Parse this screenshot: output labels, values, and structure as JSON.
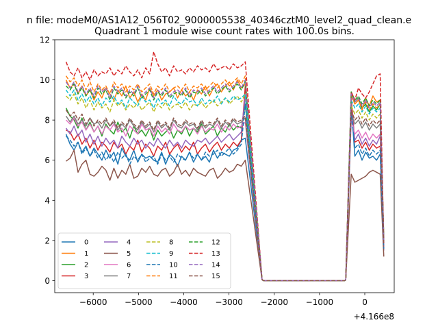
{
  "suptitle": "n file: modeM0/AS1A12_056T02_9000005538_40346cztM0_level2_quad_clean.e",
  "chart_data": {
    "type": "line",
    "title": "Quadrant 1 module wise count rates with 100.0s bins.",
    "xlabel": "",
    "ylabel": "",
    "x_offset_label": "+4.166e8",
    "xlim": [
      -6850,
      650
    ],
    "ylim": [
      -0.6,
      12.0
    ],
    "xticks": [
      -6000,
      -5000,
      -4000,
      -3000,
      -2000,
      -1000,
      0
    ],
    "xtick_labels": [
      "−6000",
      "−5000",
      "−4000",
      "−3000",
      "−2000",
      "−1000",
      "0"
    ],
    "yticks": [
      0,
      2,
      4,
      6,
      8,
      10,
      12
    ],
    "ytick_labels": [
      "0",
      "2",
      "4",
      "6",
      "8",
      "10",
      "12"
    ],
    "grid": false,
    "legend_position": "lower-left",
    "legend_columns": 4,
    "gap_x": [
      -2300,
      -400
    ],
    "series": [
      {
        "name": "0",
        "color": "#1f77b4",
        "dash": false,
        "pre": [
          7.3,
          6.8,
          6.5,
          6.9,
          6.4,
          6.7,
          6.2,
          6.6,
          6.3,
          6.0,
          6.5,
          6.1,
          6.4,
          5.8,
          6.6,
          6.2,
          6.0,
          6.5,
          5.9,
          6.3,
          6.1,
          6.2,
          6.0,
          5.9,
          6.4,
          5.8,
          6.3,
          6.1,
          5.7,
          6.2,
          6.0,
          6.4,
          5.9,
          6.3,
          6.0,
          6.2,
          5.9,
          6.5,
          6.1,
          6.4,
          6.3,
          6.2,
          6.5,
          6.6,
          7.0,
          7.1
        ],
        "post": [
          8.8,
          6.2,
          6.5,
          6.0,
          6.4,
          6.1,
          6.2,
          6.0,
          6.3,
          1.5
        ]
      },
      {
        "name": "1",
        "color": "#ff7f0e",
        "dash": false,
        "pre": [
          10.0,
          9.6,
          9.8,
          9.3,
          9.7,
          9.2,
          9.5,
          9.0,
          9.4,
          9.1,
          9.6,
          9.3,
          9.0,
          9.5,
          9.2,
          9.7,
          9.1,
          9.4,
          8.9,
          9.3,
          9.0,
          9.6,
          9.2,
          9.5,
          9.0,
          9.3,
          9.4,
          9.6,
          9.1,
          9.5,
          9.2,
          9.4,
          9.0,
          9.5,
          9.3,
          9.7,
          9.2,
          9.6,
          9.8,
          9.4,
          9.7,
          9.9,
          9.5,
          10.0,
          9.6,
          9.8
        ],
        "post": [
          9.3,
          8.8,
          9.0,
          8.5,
          9.1,
          8.7,
          9.2,
          8.9,
          9.0,
          2.0
        ]
      },
      {
        "name": "2",
        "color": "#2ca02c",
        "dash": false,
        "pre": [
          8.6,
          8.2,
          8.0,
          7.6,
          8.1,
          7.5,
          7.9,
          7.4,
          7.7,
          7.2,
          7.8,
          7.5,
          7.3,
          7.9,
          7.4,
          7.6,
          7.1,
          7.7,
          7.3,
          7.5,
          7.2,
          7.6,
          7.0,
          7.5,
          7.2,
          7.4,
          7.6,
          7.1,
          7.5,
          7.3,
          7.7,
          7.2,
          7.6,
          7.4,
          7.8,
          7.3,
          7.5,
          7.7,
          7.2,
          7.6,
          7.4,
          7.8,
          7.5,
          7.7,
          7.6,
          8.8
        ],
        "post": [
          9.4,
          8.9,
          9.1,
          8.6,
          8.8,
          8.4,
          8.7,
          8.5,
          8.8,
          1.7
        ]
      },
      {
        "name": "3",
        "color": "#d62728",
        "dash": false,
        "pre": [
          7.5,
          7.4,
          7.0,
          7.3,
          6.8,
          7.1,
          6.6,
          7.0,
          6.5,
          6.9,
          6.7,
          6.4,
          6.9,
          6.6,
          6.8,
          6.3,
          6.7,
          6.5,
          7.0,
          6.4,
          6.8,
          6.6,
          6.2,
          6.7,
          6.5,
          6.9,
          6.3,
          6.6,
          6.8,
          6.4,
          6.7,
          6.5,
          6.9,
          6.3,
          6.6,
          6.8,
          6.4,
          6.7,
          6.9,
          6.5,
          6.8,
          6.6,
          6.9,
          6.7,
          7.0,
          9.7
        ],
        "post": [
          9.1,
          6.9,
          7.0,
          6.6,
          6.9,
          6.5,
          6.8,
          6.6,
          6.7,
          1.6
        ]
      },
      {
        "name": "4",
        "color": "#9467bd",
        "dash": false,
        "pre": [
          7.6,
          7.3,
          7.7,
          7.2,
          7.5,
          6.9,
          7.3,
          6.8,
          7.2,
          6.7,
          7.1,
          6.8,
          7.0,
          6.6,
          7.2,
          6.9,
          6.7,
          7.1,
          6.8,
          7.0,
          6.6,
          6.9,
          6.7,
          7.1,
          6.8,
          6.6,
          7.0,
          6.7,
          6.9,
          6.6,
          7.0,
          6.8,
          6.7,
          7.0,
          6.9,
          7.1,
          6.8,
          7.0,
          7.2,
          6.9,
          7.1,
          7.3,
          7.0,
          7.2,
          7.4,
          9.2
        ],
        "post": [
          8.6,
          7.0,
          7.3,
          6.8,
          7.1,
          6.7,
          7.0,
          6.8,
          7.2,
          1.5
        ]
      },
      {
        "name": "5",
        "color": "#8c564b",
        "dash": false,
        "pre": [
          5.95,
          6.1,
          6.5,
          5.4,
          5.8,
          6.0,
          5.3,
          5.2,
          5.4,
          5.7,
          5.5,
          5.0,
          5.6,
          5.1,
          5.5,
          5.3,
          5.8,
          5.1,
          5.2,
          5.6,
          5.4,
          5.7,
          5.3,
          5.2,
          5.5,
          5.6,
          5.2,
          5.4,
          5.8,
          5.3,
          5.5,
          5.2,
          5.6,
          5.4,
          5.3,
          5.2,
          5.5,
          5.6,
          5.1,
          5.3,
          5.6,
          5.4,
          5.5,
          5.8,
          5.7,
          6.0
        ],
        "post": [
          5.3,
          4.9,
          5.0,
          5.1,
          5.2,
          5.4,
          5.5,
          5.4,
          5.3,
          1.2
        ]
      },
      {
        "name": "6",
        "color": "#e377c2",
        "dash": false,
        "pre": [
          8.0,
          7.8,
          8.1,
          7.7,
          7.9,
          7.5,
          7.8,
          7.4,
          7.7,
          7.3,
          7.7,
          7.5,
          7.8,
          7.4,
          7.6,
          7.2,
          7.7,
          7.5,
          7.3,
          7.8,
          7.5,
          7.6,
          7.2,
          7.7,
          7.4,
          7.6,
          7.3,
          7.8,
          7.5,
          7.4,
          7.7,
          7.5,
          7.6,
          7.3,
          7.7,
          7.4,
          7.6,
          7.5,
          7.8,
          7.4,
          7.7,
          7.5,
          7.8,
          7.6,
          7.7,
          7.9
        ],
        "post": [
          8.0,
          7.3,
          7.5,
          7.1,
          7.4,
          7.0,
          7.3,
          7.1,
          7.3,
          1.8
        ]
      },
      {
        "name": "7",
        "color": "#7f7f7f",
        "dash": false,
        "pre": [
          8.2,
          7.9,
          8.2,
          7.8,
          8.0,
          7.7,
          8.1,
          7.8,
          7.9,
          7.6,
          8.0,
          7.7,
          7.9,
          7.5,
          7.8,
          7.6,
          8.0,
          7.7,
          7.5,
          7.9,
          7.6,
          7.8,
          7.4,
          7.9,
          7.6,
          7.8,
          7.5,
          8.0,
          7.7,
          7.6,
          7.9,
          7.7,
          7.8,
          7.5,
          7.9,
          7.6,
          7.8,
          7.7,
          8.0,
          7.6,
          7.9,
          7.7,
          8.0,
          7.8,
          7.9,
          8.1
        ],
        "post": [
          8.3,
          7.8,
          8.0,
          7.6,
          7.9,
          7.5,
          7.8,
          7.6,
          7.8,
          1.9
        ]
      },
      {
        "name": "8",
        "color": "#bcbd22",
        "dash": true,
        "pre": [
          9.2,
          9.0,
          9.3,
          8.8,
          9.1,
          8.6,
          9.0,
          8.5,
          8.9,
          8.6,
          8.8,
          8.4,
          9.0,
          8.7,
          8.9,
          8.5,
          8.8,
          8.6,
          8.9,
          8.5,
          8.7,
          8.9,
          8.4,
          8.8,
          8.6,
          8.9,
          8.5,
          8.7,
          8.8,
          8.6,
          8.9,
          8.5,
          8.8,
          8.7,
          8.9,
          8.6,
          8.8,
          9.0,
          8.7,
          8.9,
          9.1,
          8.8,
          9.0,
          9.2,
          8.9,
          9.3
        ],
        "post": [
          8.7,
          8.3,
          8.5,
          8.1,
          8.4,
          8.0,
          8.3,
          8.1,
          8.3,
          1.9
        ]
      },
      {
        "name": "9",
        "color": "#17becf",
        "dash": true,
        "pre": [
          9.5,
          9.2,
          9.5,
          9.0,
          9.3,
          8.9,
          9.2,
          8.8,
          9.1,
          8.7,
          9.1,
          8.9,
          9.2,
          8.8,
          9.0,
          8.6,
          9.1,
          8.9,
          8.7,
          9.2,
          8.9,
          9.0,
          8.6,
          9.1,
          8.8,
          9.0,
          8.7,
          9.2,
          8.9,
          8.8,
          9.1,
          8.9,
          9.0,
          8.7,
          9.1,
          8.8,
          9.0,
          8.9,
          9.2,
          8.8,
          9.1,
          8.9,
          9.2,
          9.0,
          9.1,
          9.3
        ],
        "post": [
          9.0,
          8.6,
          8.8,
          8.4,
          8.7,
          8.3,
          8.6,
          8.4,
          8.6,
          2.0
        ]
      },
      {
        "name": "10",
        "color": "#1f77b4",
        "dash": true,
        "pre": [
          7.2,
          7.0,
          6.7,
          6.9,
          6.3,
          6.6,
          6.2,
          6.5,
          6.1,
          6.4,
          6.0,
          6.3,
          5.9,
          6.4,
          6.1,
          6.3,
          5.8,
          6.2,
          6.0,
          6.3,
          5.9,
          6.1,
          6.2,
          5.8,
          6.3,
          6.0,
          6.2,
          5.9,
          6.3,
          6.1,
          6.0,
          6.4,
          6.1,
          6.3,
          6.0,
          6.4,
          6.2,
          6.3,
          6.5,
          6.2,
          6.4,
          6.6,
          6.3,
          6.5,
          6.8,
          8.8
        ],
        "post": [
          8.4,
          6.6,
          6.8,
          6.3,
          6.6,
          6.2,
          6.5,
          6.3,
          6.5,
          1.6
        ]
      },
      {
        "name": "11",
        "color": "#ff7f0e",
        "dash": true,
        "pre": [
          10.2,
          9.9,
          10.1,
          9.7,
          10.0,
          9.5,
          9.9,
          9.4,
          9.8,
          9.5,
          9.7,
          9.3,
          9.9,
          9.6,
          9.8,
          9.4,
          9.7,
          9.5,
          9.8,
          9.4,
          9.6,
          9.8,
          9.3,
          9.7,
          9.5,
          9.8,
          9.4,
          9.6,
          9.7,
          9.5,
          9.8,
          9.4,
          9.7,
          9.6,
          9.8,
          9.5,
          9.7,
          9.9,
          9.6,
          9.8,
          10.0,
          9.7,
          9.9,
          10.1,
          9.8,
          10.2
        ],
        "post": [
          9.2,
          8.8,
          9.0,
          8.6,
          8.9,
          8.5,
          8.8,
          8.6,
          8.8,
          2.0
        ]
      },
      {
        "name": "12",
        "color": "#2ca02c",
        "dash": true,
        "pre": [
          9.7,
          9.5,
          9.8,
          9.3,
          9.6,
          9.2,
          9.5,
          9.1,
          9.6,
          9.3,
          9.5,
          9.0,
          9.6,
          9.3,
          9.5,
          9.1,
          9.4,
          9.2,
          9.6,
          9.1,
          9.3,
          9.5,
          9.0,
          9.4,
          9.2,
          9.5,
          9.1,
          9.3,
          9.4,
          9.2,
          9.5,
          9.1,
          9.4,
          9.3,
          9.5,
          9.2,
          9.4,
          9.6,
          9.3,
          9.5,
          9.7,
          9.4,
          9.6,
          9.8,
          9.5,
          9.9
        ],
        "post": [
          9.4,
          9.0,
          9.2,
          8.8,
          9.1,
          8.7,
          9.0,
          8.8,
          9.0,
          2.1
        ]
      },
      {
        "name": "13",
        "color": "#d62728",
        "dash": true,
        "pre": [
          10.9,
          10.4,
          10.2,
          10.6,
          10.1,
          10.4,
          10.0,
          10.5,
          10.2,
          10.4,
          10.3,
          10.6,
          10.2,
          10.5,
          10.3,
          10.7,
          10.4,
          10.2,
          10.5,
          10.1,
          10.6,
          10.3,
          11.4,
          10.8,
          10.4,
          10.6,
          10.2,
          10.7,
          10.4,
          10.5,
          10.3,
          10.6,
          10.4,
          10.7,
          10.5,
          10.6,
          10.4,
          10.8,
          10.5,
          10.6,
          10.7,
          10.5,
          10.8,
          10.6,
          10.7,
          10.9
        ],
        "post": [
          9.4,
          9.0,
          9.6,
          9.3,
          9.1,
          9.4,
          9.8,
          10.2,
          10.3,
          1.8
        ]
      },
      {
        "name": "14",
        "color": "#9467bd",
        "dash": true,
        "pre": [
          9.9,
          9.6,
          9.9,
          9.4,
          9.7,
          9.3,
          9.6,
          9.2,
          9.7,
          9.4,
          9.6,
          9.1,
          9.7,
          9.4,
          9.6,
          9.2,
          9.5,
          9.3,
          9.7,
          9.2,
          9.4,
          9.6,
          9.1,
          9.5,
          9.3,
          9.6,
          9.2,
          9.4,
          9.5,
          9.3,
          9.6,
          9.2,
          9.5,
          9.4,
          9.6,
          9.3,
          9.5,
          9.7,
          9.4,
          9.6,
          9.8,
          9.5,
          9.7,
          9.9,
          9.6,
          10.0
        ],
        "post": [
          9.3,
          8.9,
          9.1,
          8.7,
          9.0,
          8.6,
          8.9,
          8.7,
          8.9,
          2.0
        ]
      },
      {
        "name": "15",
        "color": "#8c564b",
        "dash": true,
        "pre": [
          8.5,
          8.2,
          8.4,
          8.0,
          8.3,
          7.8,
          8.1,
          7.7,
          8.0,
          7.8,
          8.1,
          7.7,
          8.0,
          7.6,
          7.9,
          7.7,
          8.1,
          7.8,
          7.6,
          8.0,
          7.7,
          7.9,
          7.5,
          8.0,
          7.7,
          7.9,
          7.6,
          8.1,
          7.8,
          7.7,
          8.0,
          7.8,
          7.9,
          7.6,
          8.0,
          7.7,
          7.9,
          7.8,
          8.1,
          7.7,
          8.0,
          7.8,
          8.1,
          7.9,
          8.0,
          8.2
        ],
        "post": [
          8.5,
          8.0,
          8.2,
          7.8,
          8.1,
          7.7,
          8.0,
          7.8,
          8.0,
          1.9
        ]
      }
    ]
  }
}
